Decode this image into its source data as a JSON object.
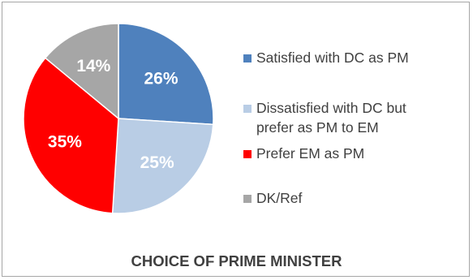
{
  "chart_data": {
    "type": "pie",
    "title": "CHOICE OF PRIME MINISTER",
    "legend_position": "right",
    "slices": [
      {
        "name": "Satisfied with DC as PM",
        "value": 26,
        "label": "26%",
        "color": "#4f81bd"
      },
      {
        "name": "Dissatisfied with DC but prefer as PM to EM",
        "value": 25,
        "label": "25%",
        "color": "#b9cde5"
      },
      {
        "name": "Prefer EM as PM",
        "value": 35,
        "label": "35%",
        "color": "#ff0000"
      },
      {
        "name": "DK/Ref",
        "value": 14,
        "label": "14%",
        "color": "#a6a6a6"
      }
    ]
  }
}
